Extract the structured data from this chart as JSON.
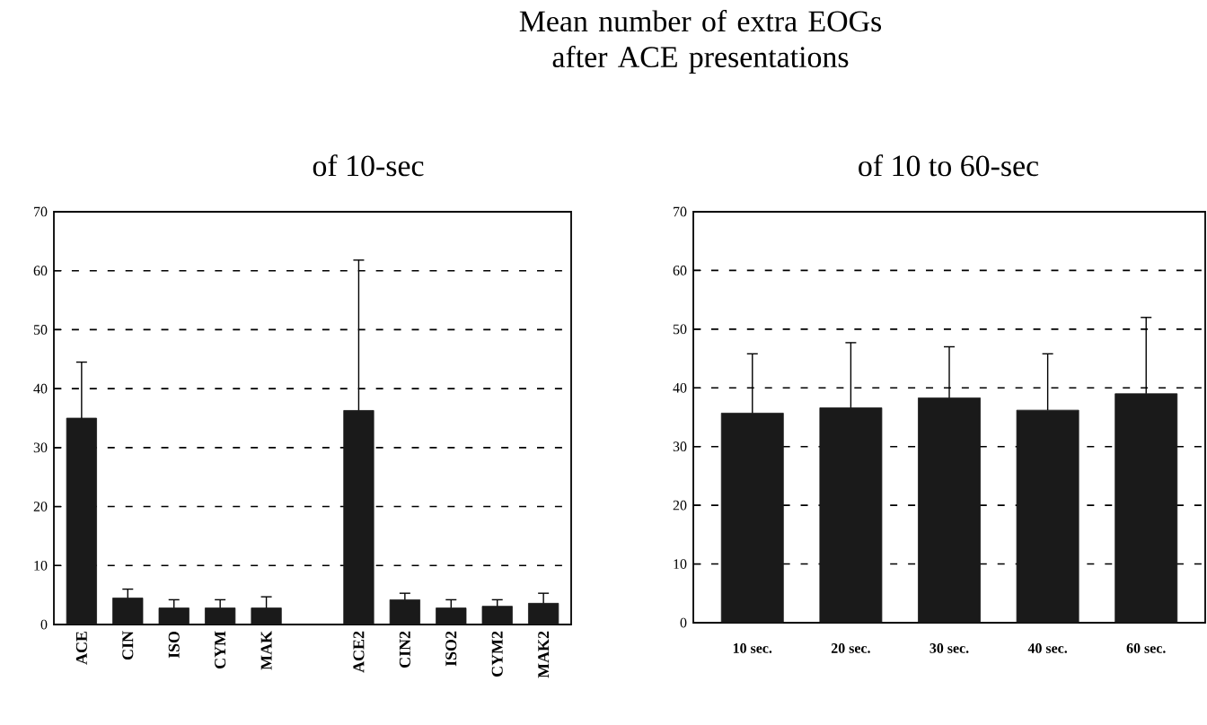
{
  "chart_data": [
    {
      "type": "bar",
      "title": "of 10-sec",
      "categories": [
        "ACE",
        "CIN",
        "ISO",
        "CYM",
        "MAK",
        null,
        "ACE2",
        "CIN2",
        "ISO2",
        "CYM2",
        "MAK2"
      ],
      "values": [
        35,
        4.5,
        2.8,
        2.8,
        2.8,
        null,
        36.3,
        4.2,
        2.8,
        3.1,
        3.6
      ],
      "errors": [
        [
          35,
          44.5
        ],
        [
          4.5,
          6
        ],
        [
          2.8,
          4.2
        ],
        [
          2.8,
          4.2
        ],
        [
          2.8,
          4.7
        ],
        null,
        [
          36.3,
          61.8
        ],
        [
          4.2,
          5.3
        ],
        [
          2.8,
          4.2
        ],
        [
          3.1,
          4.2
        ],
        [
          3.6,
          5.3
        ]
      ],
      "color": "#1a1a1a",
      "ylim": [
        0,
        70
      ],
      "yticks": [
        0,
        10,
        20,
        30,
        40,
        50,
        60,
        70
      ],
      "grid": "y"
    },
    {
      "type": "bar",
      "title": "Mean number of extra EOGs after ACE presentations",
      "subtitle": "of 10 to 60-sec",
      "categories": [
        "10 sec.",
        "20 sec.",
        "30 sec.",
        "40 sec.",
        "60 sec."
      ],
      "values": [
        35.7,
        36.6,
        38.3,
        36.2,
        39
      ],
      "errors": [
        [
          35.7,
          45.8
        ],
        [
          36.6,
          47.7
        ],
        [
          38.3,
          47
        ],
        [
          36.2,
          45.8
        ],
        [
          39,
          52
        ]
      ],
      "color": "#1a1a1a",
      "ylim": [
        0,
        70
      ],
      "yticks": [
        0,
        10,
        20,
        30,
        40,
        50,
        60,
        70
      ],
      "grid": "y"
    }
  ]
}
